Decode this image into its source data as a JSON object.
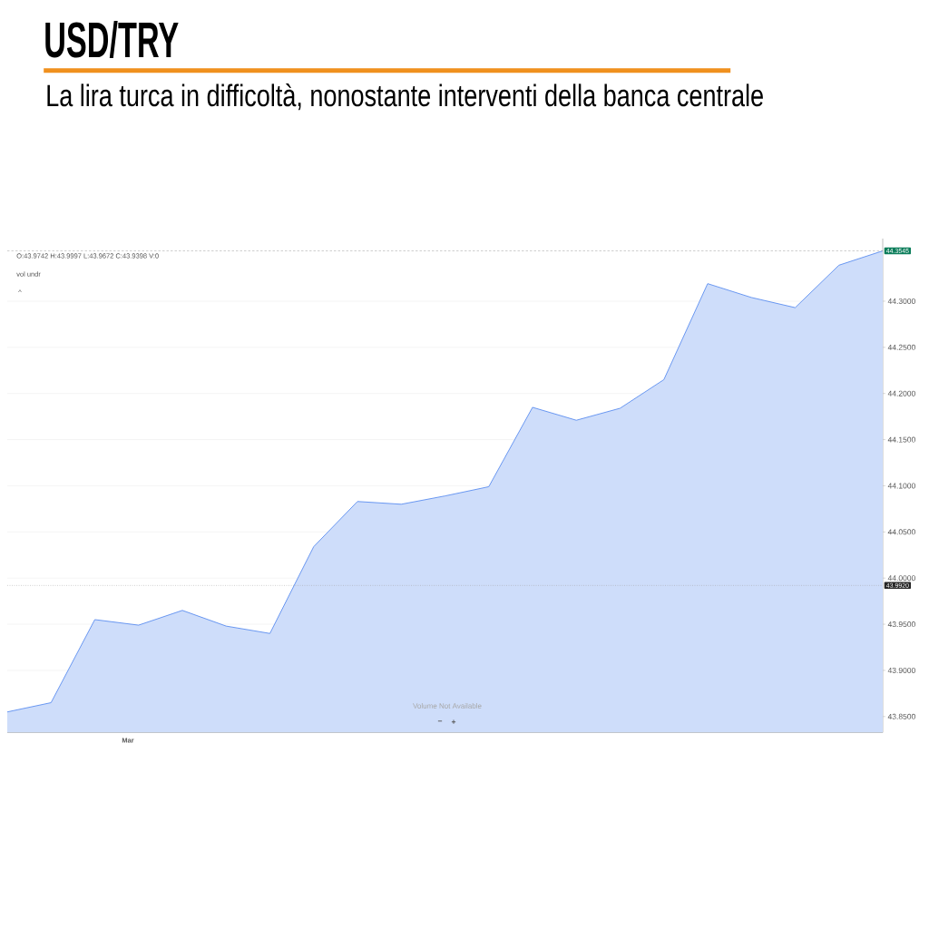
{
  "chart_data": {
    "type": "area",
    "title": "USD/TRY",
    "subtitle": "La lira turca in difficoltà, nonostante interventi della banca centrale",
    "categories": [
      null,
      null,
      null,
      null,
      null,
      null,
      null,
      null,
      null,
      null,
      null,
      null,
      null,
      null,
      null,
      null,
      null,
      null,
      null,
      null,
      null
    ],
    "values": [
      43.855,
      43.865,
      43.955,
      43.949,
      43.965,
      43.948,
      43.94,
      44.034,
      44.083,
      44.08,
      44.089,
      44.099,
      44.185,
      44.171,
      44.184,
      44.215,
      44.319,
      44.304,
      44.293,
      44.339,
      44.3545
    ],
    "color": "#5b8def",
    "ylim": [
      43.8326,
      44.3678
    ],
    "yticks": [
      {
        "value": 43.85,
        "label": "43.8500"
      },
      {
        "value": 43.9,
        "label": "43.9000"
      },
      {
        "value": 43.95,
        "label": "43.9500"
      },
      {
        "value": 44.0,
        "label": "44.0000"
      },
      {
        "value": 44.05,
        "label": "44.0500"
      },
      {
        "value": 44.1,
        "label": "44.1000"
      },
      {
        "value": 44.15,
        "label": "44.1500"
      },
      {
        "value": 44.2,
        "label": "44.2000"
      },
      {
        "value": 44.25,
        "label": "44.2500"
      },
      {
        "value": 44.3,
        "label": "44.3000"
      }
    ],
    "grid": "y",
    "ref_lines": [
      {
        "axis": "y",
        "value": 44.3545,
        "label": "44.3545",
        "color": "#9e9e9e",
        "line_style": "dashed"
      },
      {
        "axis": "y",
        "value": 43.992,
        "label": "43.9920",
        "color": "#9e9e9e",
        "line_style": "dotted"
      }
    ],
    "annotations": [
      "O:43.9742  H:43.9997  L:43.9672  C:43.9398  V:0",
      "vol undr",
      "^",
      "Volume Not Available",
      "−",
      "+",
      "Mar"
    ]
  }
}
